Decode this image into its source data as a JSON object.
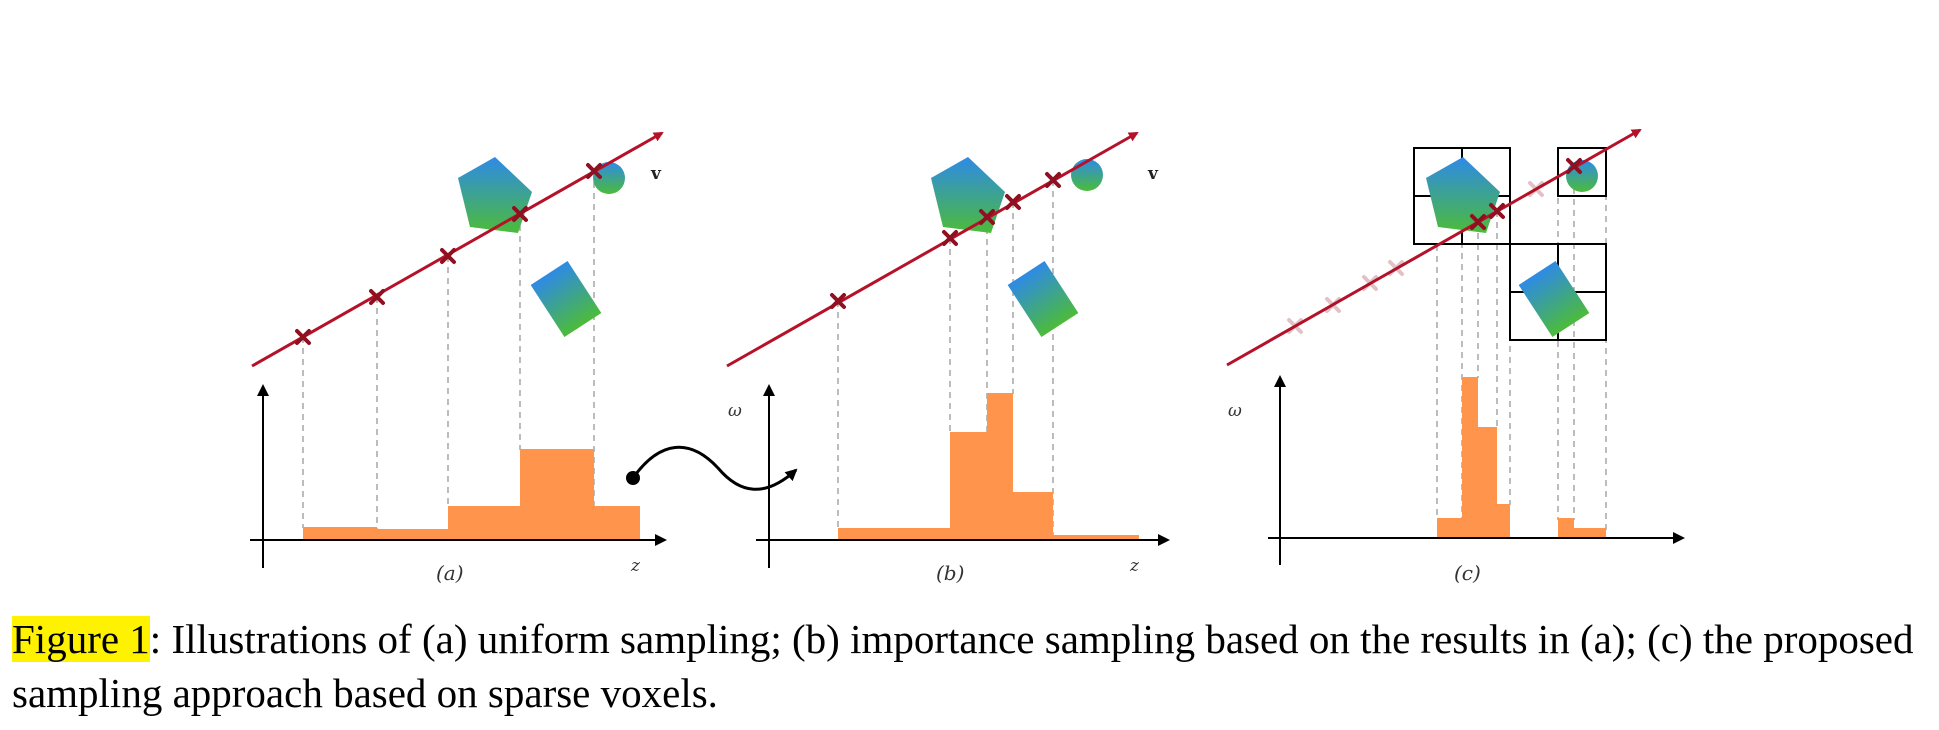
{
  "figure": {
    "panels": [
      {
        "id": "a",
        "label": "(a)",
        "z_label": "z",
        "v_label": "v",
        "omega_label": ""
      },
      {
        "id": "b",
        "label": "(b)",
        "z_label": "z",
        "v_label": "v",
        "omega_label": "ω"
      },
      {
        "id": "c",
        "label": "(c)",
        "z_label": "",
        "v_label": "",
        "omega_label": "ω"
      }
    ],
    "colors": {
      "ray": "#b5122a",
      "sample_marker": "#8f1020",
      "histogram": "#ff944d",
      "shape_top": "#2e8ae6",
      "shape_bottom": "#4cbb3a",
      "guide": "#999999",
      "voxel": "#000000",
      "highlight": "#fff200"
    }
  },
  "caption": {
    "label": "Figure 1",
    "text": ": Illustrations of (a) uniform sampling; (b) importance sampling based on the results in (a); (c) the proposed sampling approach based on sparse voxels."
  }
}
